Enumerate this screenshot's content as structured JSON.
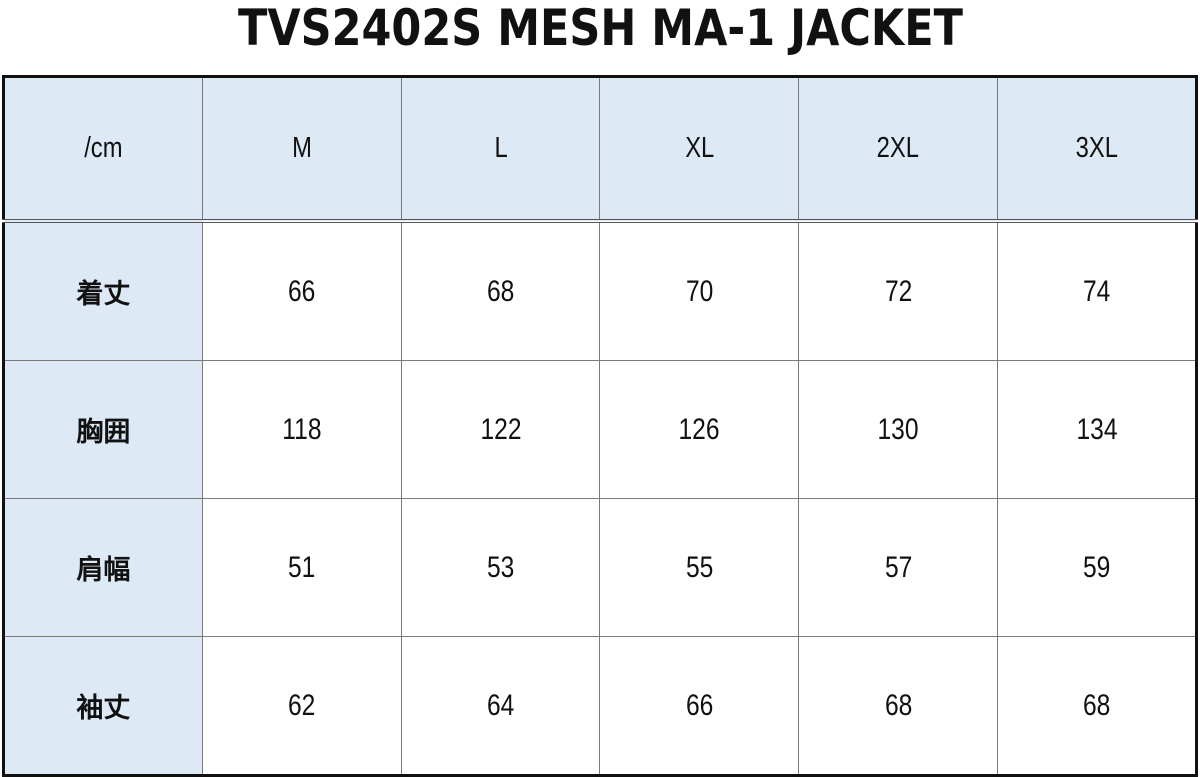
{
  "title": "TVS2402S MESH MA-1 JACKET",
  "colors": {
    "header_bg": "#dde9f5",
    "border": "#111111"
  },
  "table": {
    "corner": "/cm",
    "sizes": [
      "M",
      "L",
      "XL",
      "2XL",
      "3XL"
    ],
    "rows": [
      {
        "label": "着丈",
        "values": [
          "66",
          "68",
          "70",
          "72",
          "74"
        ]
      },
      {
        "label": "胸囲",
        "values": [
          "118",
          "122",
          "126",
          "130",
          "134"
        ]
      },
      {
        "label": "肩幅",
        "values": [
          "51",
          "53",
          "55",
          "57",
          "59"
        ]
      },
      {
        "label": "袖丈",
        "values": [
          "62",
          "64",
          "66",
          "68",
          "68"
        ]
      }
    ]
  }
}
